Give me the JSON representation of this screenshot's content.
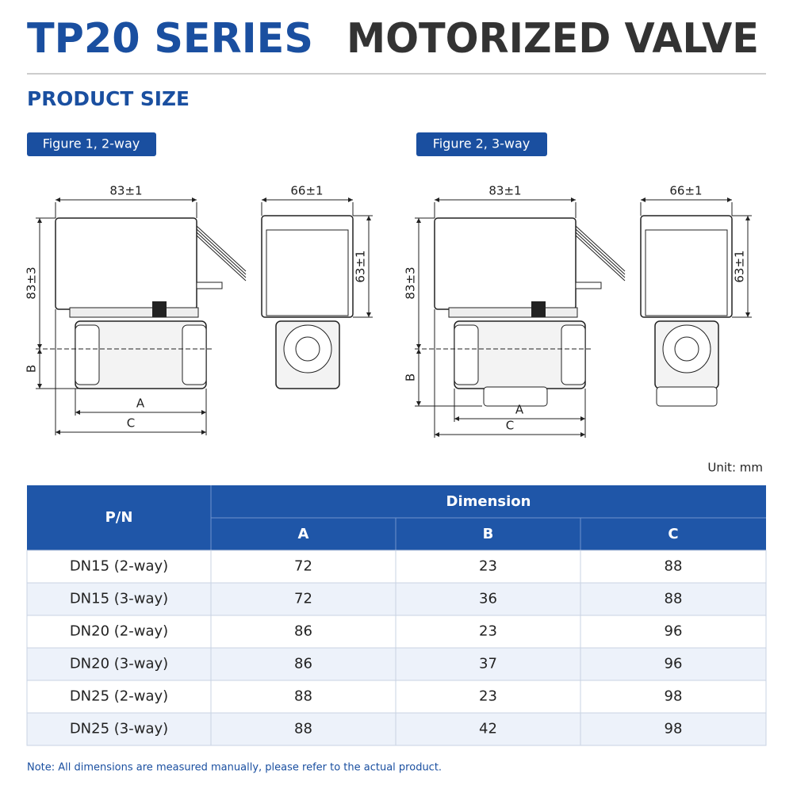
{
  "header": {
    "series": "TP20 SERIES",
    "product": "MOTORIZED VALVE",
    "section": "PRODUCT SIZE"
  },
  "figures": [
    {
      "label": "Figure 1, 2-way",
      "side_width": "83±1",
      "front_width": "66±1",
      "side_height": "83±3",
      "front_height": "63±1",
      "a": "A",
      "b": "B",
      "c": "C"
    },
    {
      "label": "Figure 2, 3-way",
      "side_width": "83±1",
      "front_width": "66±1",
      "side_height": "83±3",
      "front_height": "63±1",
      "a": "A",
      "b": "B",
      "c": "C"
    }
  ],
  "unit": "Unit: mm",
  "table": {
    "pn_header": "P/N",
    "group_header": "Dimension",
    "sub_headers": [
      "A",
      "B",
      "C"
    ],
    "rows": [
      [
        "DN15 (2-way)",
        72,
        23,
        88
      ],
      [
        "DN15 (3-way)",
        72,
        36,
        88
      ],
      [
        "DN20 (2-way)",
        86,
        23,
        96
      ],
      [
        "DN20 (3-way)",
        86,
        37,
        96
      ],
      [
        "DN25 (2-way)",
        88,
        23,
        98
      ],
      [
        "DN25 (3-way)",
        88,
        42,
        98
      ]
    ]
  },
  "note": "Note: All dimensions are measured manually, please refer to the actual product."
}
